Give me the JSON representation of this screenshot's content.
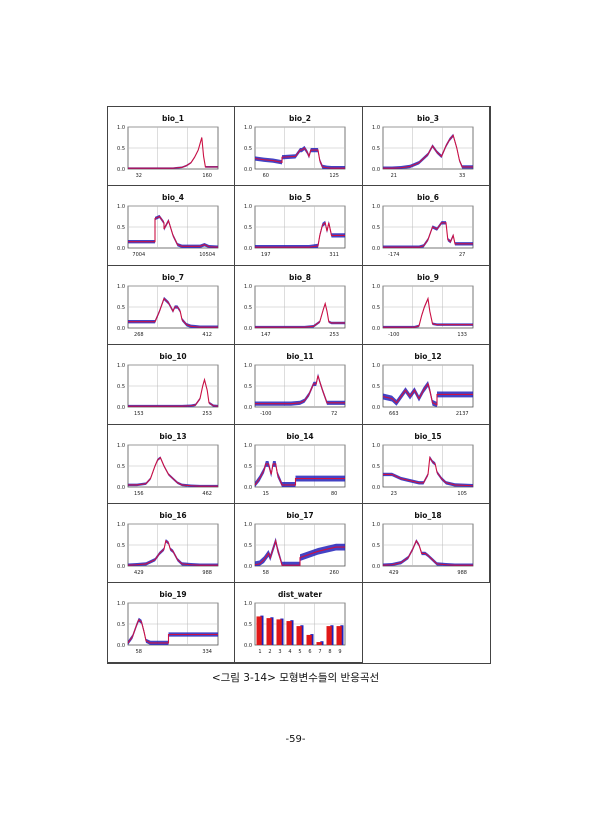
{
  "figure": {
    "caption": "<그림 3-14> 모형변수들의 반응곡선",
    "y_ticks": [
      "0.0",
      "0.5",
      "1.0"
    ]
  },
  "page_number": "-59-",
  "colors": {
    "line": "#cc1144",
    "band": "#2222bb",
    "axis": "#555555",
    "grid": "#bbbbbb",
    "bar": "#e01818"
  },
  "chart_data": [
    {
      "type": "line",
      "title": "bio_1",
      "xticks": [
        "32",
        "160"
      ],
      "ylim": [
        0,
        1
      ],
      "x": [
        0,
        0.1,
        0.2,
        0.3,
        0.4,
        0.5,
        0.55,
        0.6,
        0.65,
        0.7,
        0.74,
        0.78,
        0.8,
        0.82,
        0.84,
        0.86,
        0.9,
        1
      ],
      "y": [
        0.02,
        0.02,
        0.02,
        0.02,
        0.02,
        0.02,
        0.03,
        0.04,
        0.08,
        0.15,
        0.28,
        0.45,
        0.6,
        0.75,
        0.3,
        0.05,
        0.05,
        0.05
      ],
      "band": 0.02
    },
    {
      "type": "line",
      "title": "bio_2",
      "xticks": [
        "60",
        "125"
      ],
      "ylim": [
        0,
        1
      ],
      "x": [
        0,
        0.1,
        0.2,
        0.3,
        0.3,
        0.45,
        0.5,
        0.52,
        0.55,
        0.58,
        0.6,
        0.62,
        0.65,
        0.7,
        0.72,
        0.75,
        0.8,
        0.85,
        0.9,
        1
      ],
      "y": [
        0.25,
        0.22,
        0.2,
        0.16,
        0.28,
        0.3,
        0.45,
        0.45,
        0.5,
        0.4,
        0.3,
        0.45,
        0.45,
        0.45,
        0.2,
        0.05,
        0.03,
        0.02,
        0.02,
        0.02
      ],
      "band": 0.05
    },
    {
      "type": "line",
      "title": "bio_3",
      "xticks": [
        "21",
        "33"
      ],
      "ylim": [
        0,
        1
      ],
      "x": [
        0,
        0.1,
        0.2,
        0.3,
        0.4,
        0.5,
        0.55,
        0.6,
        0.65,
        0.7,
        0.74,
        0.78,
        0.82,
        0.85,
        0.88,
        0.95,
        1
      ],
      "y": [
        0.02,
        0.02,
        0.03,
        0.06,
        0.15,
        0.35,
        0.55,
        0.4,
        0.3,
        0.55,
        0.7,
        0.8,
        0.5,
        0.2,
        0.05,
        0.05,
        0.05
      ],
      "band": 0.04
    },
    {
      "type": "line",
      "title": "bio_4",
      "xticks": [
        "7004",
        "10504"
      ],
      "ylim": [
        0,
        1
      ],
      "x": [
        0,
        0.2,
        0.3,
        0.3,
        0.35,
        0.4,
        0.4,
        0.45,
        0.5,
        0.55,
        0.6,
        0.7,
        0.8,
        0.85,
        0.9,
        1
      ],
      "y": [
        0.15,
        0.15,
        0.15,
        0.7,
        0.75,
        0.6,
        0.45,
        0.65,
        0.3,
        0.08,
        0.04,
        0.04,
        0.04,
        0.08,
        0.03,
        0.02
      ],
      "band": 0.04
    },
    {
      "type": "line",
      "title": "bio_5",
      "xticks": [
        "197",
        "311"
      ],
      "ylim": [
        0,
        1
      ],
      "x": [
        0,
        0.2,
        0.4,
        0.6,
        0.7,
        0.72,
        0.75,
        0.78,
        0.8,
        0.82,
        0.85,
        0.9,
        1
      ],
      "y": [
        0.02,
        0.02,
        0.02,
        0.02,
        0.05,
        0.3,
        0.55,
        0.6,
        0.4,
        0.6,
        0.3,
        0.3,
        0.3
      ],
      "band": 0.05
    },
    {
      "type": "line",
      "title": "bio_6",
      "xticks": [
        "-174",
        "27"
      ],
      "ylim": [
        0,
        1
      ],
      "x": [
        0,
        0.2,
        0.4,
        0.45,
        0.5,
        0.55,
        0.6,
        0.65,
        0.7,
        0.72,
        0.75,
        0.78,
        0.8,
        0.85,
        1
      ],
      "y": [
        0.02,
        0.02,
        0.02,
        0.05,
        0.2,
        0.5,
        0.45,
        0.6,
        0.6,
        0.2,
        0.15,
        0.3,
        0.1,
        0.1,
        0.1
      ],
      "band": 0.04
    },
    {
      "type": "line",
      "title": "bio_7",
      "xticks": [
        "268",
        "412"
      ],
      "ylim": [
        0,
        1
      ],
      "x": [
        0,
        0.15,
        0.3,
        0.35,
        0.4,
        0.45,
        0.5,
        0.52,
        0.55,
        0.58,
        0.6,
        0.65,
        0.7,
        0.75,
        0.8,
        1
      ],
      "y": [
        0.15,
        0.15,
        0.15,
        0.4,
        0.7,
        0.6,
        0.4,
        0.5,
        0.5,
        0.4,
        0.2,
        0.08,
        0.04,
        0.03,
        0.02,
        0.02
      ],
      "band": 0.04
    },
    {
      "type": "line",
      "title": "bio_8",
      "xticks": [
        "147",
        "253"
      ],
      "ylim": [
        0,
        1
      ],
      "x": [
        0,
        0.2,
        0.4,
        0.55,
        0.65,
        0.72,
        0.76,
        0.78,
        0.8,
        0.82,
        0.85,
        0.9,
        1
      ],
      "y": [
        0.02,
        0.02,
        0.02,
        0.02,
        0.04,
        0.15,
        0.45,
        0.58,
        0.4,
        0.15,
        0.12,
        0.12,
        0.12
      ],
      "band": 0.03
    },
    {
      "type": "line",
      "title": "bio_9",
      "xticks": [
        "-100",
        "133"
      ],
      "ylim": [
        0,
        1
      ],
      "x": [
        0,
        0.2,
        0.35,
        0.4,
        0.43,
        0.46,
        0.5,
        0.52,
        0.55,
        0.6,
        0.7,
        0.8,
        1
      ],
      "y": [
        0.02,
        0.02,
        0.02,
        0.05,
        0.3,
        0.5,
        0.7,
        0.4,
        0.1,
        0.08,
        0.08,
        0.08,
        0.08
      ],
      "band": 0.03
    },
    {
      "type": "line",
      "title": "bio_10",
      "xticks": [
        "153",
        "253"
      ],
      "ylim": [
        0,
        1
      ],
      "x": [
        0,
        0.2,
        0.4,
        0.6,
        0.7,
        0.75,
        0.8,
        0.83,
        0.85,
        0.88,
        0.9,
        0.95,
        1
      ],
      "y": [
        0.02,
        0.02,
        0.02,
        0.02,
        0.03,
        0.05,
        0.2,
        0.5,
        0.65,
        0.4,
        0.1,
        0.03,
        0.02
      ],
      "band": 0.03
    },
    {
      "type": "line",
      "title": "bio_11",
      "xticks": [
        "-100",
        "72"
      ],
      "ylim": [
        0,
        1
      ],
      "x": [
        0,
        0.2,
        0.4,
        0.5,
        0.55,
        0.6,
        0.65,
        0.68,
        0.7,
        0.72,
        0.75,
        0.8,
        0.85,
        1
      ],
      "y": [
        0.08,
        0.08,
        0.08,
        0.1,
        0.15,
        0.3,
        0.55,
        0.55,
        0.75,
        0.6,
        0.4,
        0.1,
        0.1,
        0.1
      ],
      "band": 0.05
    },
    {
      "type": "line",
      "title": "bio_12",
      "xticks": [
        "663",
        "2137"
      ],
      "ylim": [
        0,
        1
      ],
      "x": [
        0,
        0.1,
        0.15,
        0.2,
        0.25,
        0.3,
        0.35,
        0.4,
        0.45,
        0.5,
        0.52,
        0.55,
        0.6,
        0.6,
        1
      ],
      "y": [
        0.25,
        0.2,
        0.1,
        0.25,
        0.4,
        0.25,
        0.4,
        0.2,
        0.4,
        0.55,
        0.4,
        0.1,
        0.05,
        0.3,
        0.3
      ],
      "band": 0.07
    },
    {
      "type": "line",
      "title": "bio_13",
      "xticks": [
        "156",
        "462"
      ],
      "ylim": [
        0,
        1
      ],
      "x": [
        0,
        0.1,
        0.2,
        0.25,
        0.3,
        0.33,
        0.36,
        0.4,
        0.45,
        0.5,
        0.55,
        0.6,
        0.7,
        0.8,
        1
      ],
      "y": [
        0.05,
        0.05,
        0.08,
        0.2,
        0.5,
        0.65,
        0.7,
        0.5,
        0.3,
        0.2,
        0.1,
        0.05,
        0.03,
        0.02,
        0.02
      ],
      "band": 0.03
    },
    {
      "type": "line",
      "title": "bio_14",
      "xticks": [
        "15",
        "80"
      ],
      "ylim": [
        0,
        1
      ],
      "x": [
        0,
        0.05,
        0.1,
        0.12,
        0.15,
        0.18,
        0.2,
        0.23,
        0.25,
        0.3,
        0.4,
        0.45,
        0.45,
        1
      ],
      "y": [
        0.05,
        0.2,
        0.4,
        0.55,
        0.55,
        0.3,
        0.55,
        0.55,
        0.3,
        0.05,
        0.05,
        0.05,
        0.2,
        0.2
      ],
      "band": 0.07
    },
    {
      "type": "line",
      "title": "bio_15",
      "xticks": [
        "23",
        "105"
      ],
      "ylim": [
        0,
        1
      ],
      "x": [
        0,
        0.1,
        0.2,
        0.3,
        0.4,
        0.45,
        0.5,
        0.52,
        0.55,
        0.58,
        0.6,
        0.65,
        0.7,
        0.8,
        1
      ],
      "y": [
        0.3,
        0.3,
        0.2,
        0.15,
        0.1,
        0.1,
        0.3,
        0.7,
        0.6,
        0.55,
        0.35,
        0.2,
        0.1,
        0.05,
        0.03
      ],
      "band": 0.04
    },
    {
      "type": "line",
      "title": "bio_16",
      "xticks": [
        "429",
        "988"
      ],
      "ylim": [
        0,
        1
      ],
      "x": [
        0,
        0.1,
        0.2,
        0.3,
        0.35,
        0.4,
        0.42,
        0.45,
        0.47,
        0.5,
        0.55,
        0.6,
        0.7,
        0.8,
        1
      ],
      "y": [
        0.02,
        0.03,
        0.05,
        0.15,
        0.3,
        0.4,
        0.6,
        0.55,
        0.4,
        0.35,
        0.15,
        0.05,
        0.03,
        0.02,
        0.02
      ],
      "band": 0.04
    },
    {
      "type": "line",
      "title": "bio_17",
      "xticks": [
        "58",
        "260"
      ],
      "ylim": [
        0,
        1
      ],
      "x": [
        0,
        0.05,
        0.1,
        0.15,
        0.17,
        0.2,
        0.23,
        0.25,
        0.3,
        0.5,
        0.5,
        0.7,
        0.9,
        1
      ],
      "y": [
        0.03,
        0.05,
        0.15,
        0.3,
        0.2,
        0.4,
        0.6,
        0.4,
        0.02,
        0.02,
        0.2,
        0.35,
        0.45,
        0.45
      ],
      "band": 0.08
    },
    {
      "type": "line",
      "title": "bio_18",
      "xticks": [
        "429",
        "988"
      ],
      "ylim": [
        0,
        1
      ],
      "x": [
        0,
        0.1,
        0.2,
        0.28,
        0.33,
        0.37,
        0.4,
        0.43,
        0.47,
        0.5,
        0.55,
        0.6,
        0.7,
        0.8,
        1
      ],
      "y": [
        0.02,
        0.03,
        0.08,
        0.2,
        0.4,
        0.6,
        0.5,
        0.3,
        0.3,
        0.25,
        0.15,
        0.05,
        0.03,
        0.02,
        0.02
      ],
      "band": 0.04
    },
    {
      "type": "line",
      "title": "bio_19",
      "xticks": [
        "58",
        "334"
      ],
      "ylim": [
        0,
        1
      ],
      "x": [
        0,
        0.05,
        0.1,
        0.12,
        0.15,
        0.18,
        0.2,
        0.25,
        0.35,
        0.45,
        0.45,
        1
      ],
      "y": [
        0.05,
        0.2,
        0.5,
        0.6,
        0.55,
        0.3,
        0.1,
        0.05,
        0.05,
        0.05,
        0.25,
        0.25
      ],
      "band": 0.05
    },
    {
      "type": "bar",
      "title": "dist_water",
      "categories": [
        "1",
        "2",
        "3",
        "4",
        "5",
        "6",
        "7",
        "8",
        "9"
      ],
      "ylim": [
        0,
        1
      ],
      "values": [
        0.68,
        0.64,
        0.61,
        0.57,
        0.45,
        0.24,
        0.07,
        0.45,
        0.45
      ]
    }
  ]
}
